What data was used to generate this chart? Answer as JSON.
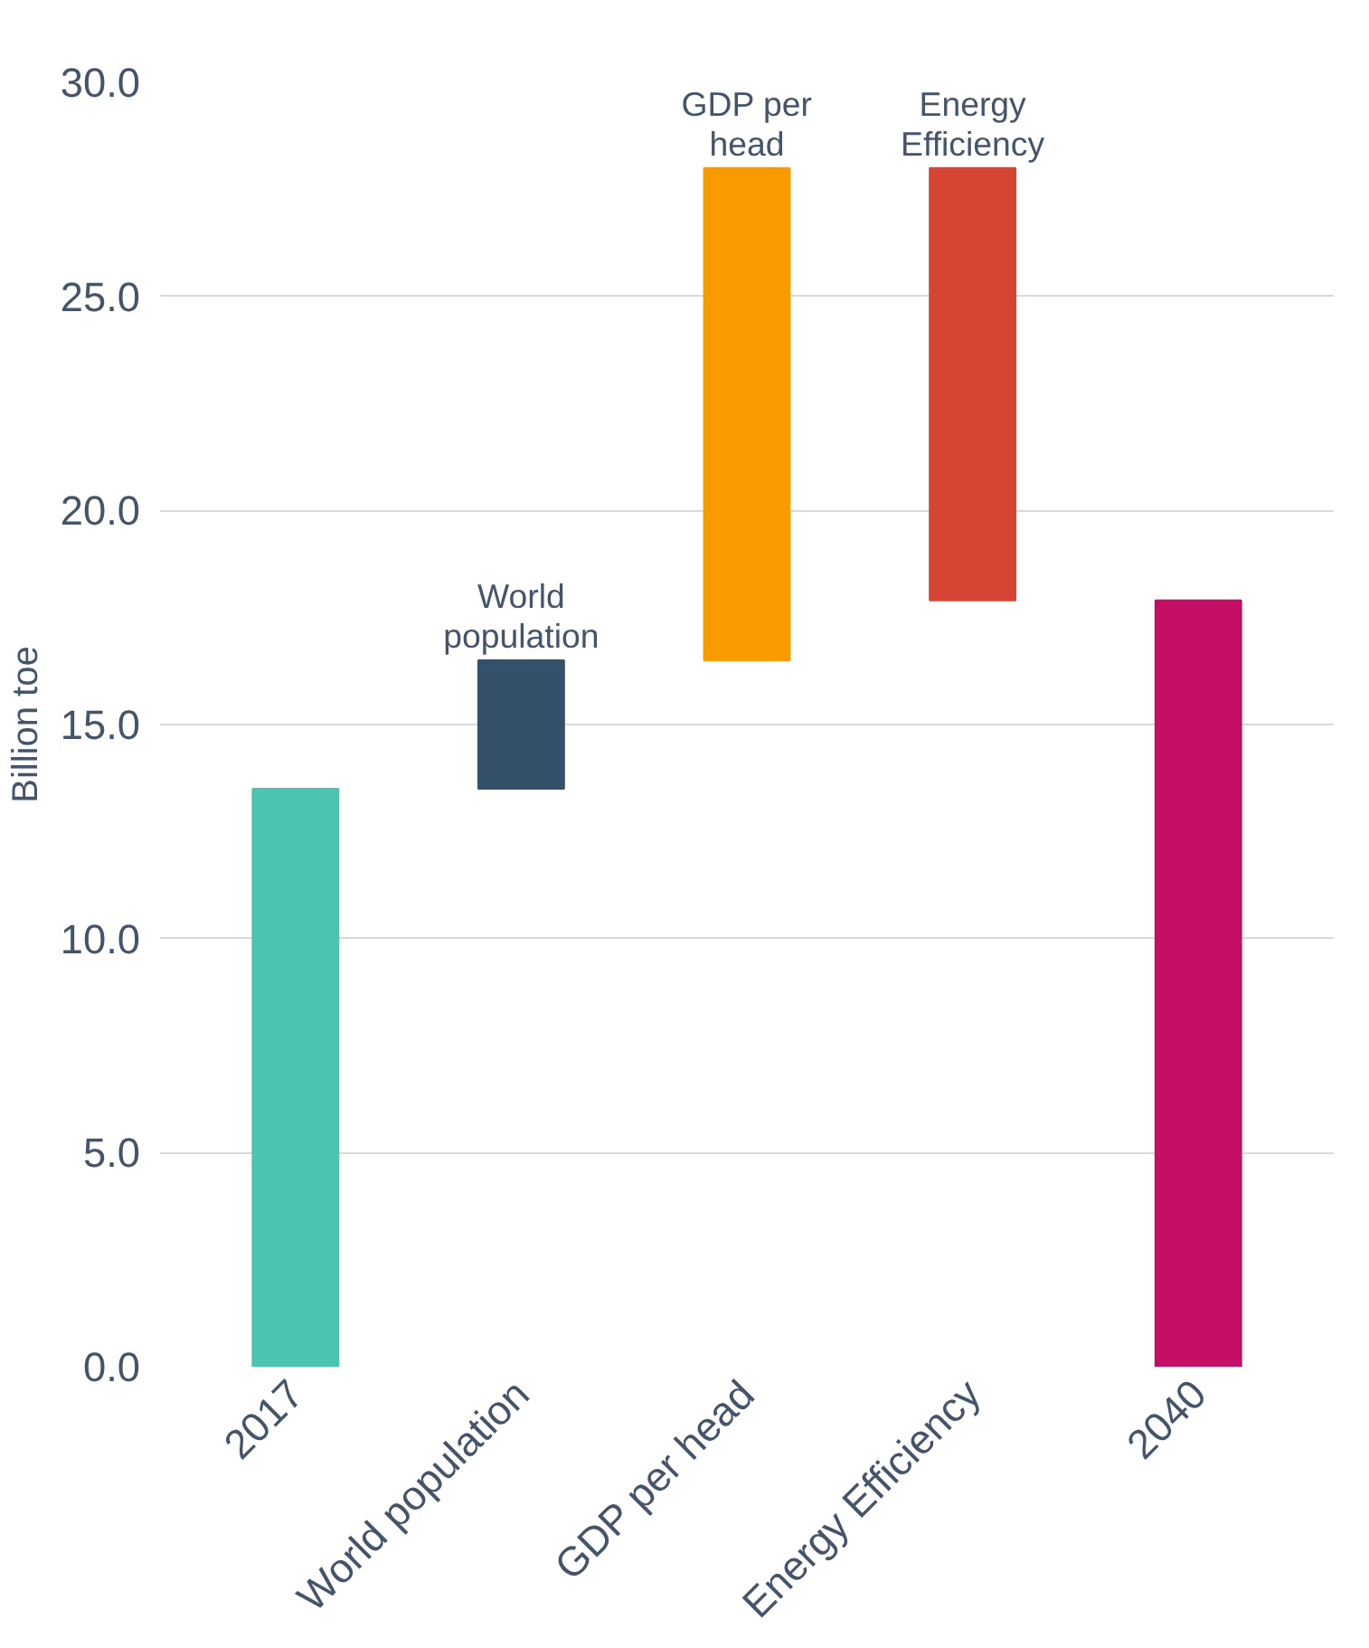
{
  "chart_data": {
    "type": "bar",
    "ylabel": "Billion toe",
    "categories": [
      "2017",
      "World population",
      "GDP per head",
      "Energy Efficiency",
      "2040"
    ],
    "values": [
      13.5,
      3.0,
      11.5,
      -10.1,
      17.9
    ],
    "base": [
      0,
      13.5,
      16.5,
      28.0,
      0
    ],
    "colors": [
      "#4bc4b0",
      "#34506b",
      "#f99b00",
      "#d64534",
      "#c40f64"
    ],
    "ylim": [
      0,
      30
    ],
    "yticks": [
      {
        "value": 0,
        "label": "0.0"
      },
      {
        "value": 5,
        "label": "5.0"
      },
      {
        "value": 10,
        "label": "10.0"
      },
      {
        "value": 15,
        "label": "15.0"
      },
      {
        "value": 20,
        "label": "20.0"
      },
      {
        "value": 25,
        "label": "25.0"
      },
      {
        "value": 30,
        "label": "30.0"
      }
    ],
    "grid": "y",
    "annotations": [
      {
        "text": "World population",
        "x": "World population",
        "y": 16.5
      },
      {
        "text": "GDP per head",
        "x": "GDP per head",
        "y": 28.0
      },
      {
        "text": "Energy Efficiency",
        "x": "Energy Efficiency",
        "y": 28.0
      }
    ]
  }
}
